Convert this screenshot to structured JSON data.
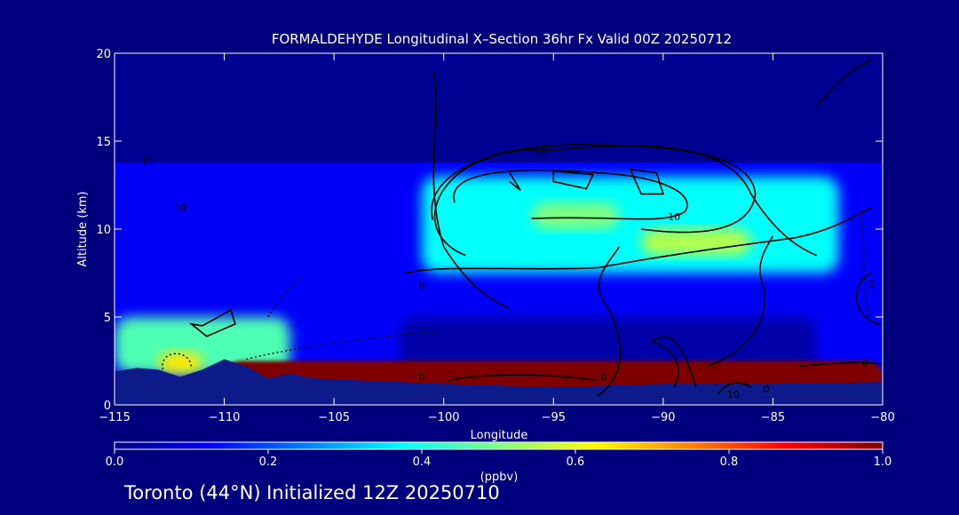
{
  "chart_data": {
    "type": "heatmap",
    "title": "FORMALDEHYDE Longitudinal X–Section 36hr  Fx Valid 00Z 20250712",
    "xlabel": "Longitude",
    "ylabel": "Altitude (km)",
    "xlim": [
      -115,
      -80
    ],
    "ylim": [
      0,
      20
    ],
    "x_ticks": [
      -115,
      -110,
      -105,
      -100,
      -95,
      -90,
      -85,
      -80
    ],
    "x_tick_labels": [
      "−115",
      "−110",
      "−105",
      "−100",
      "−95",
      "−90",
      "−85",
      "−80"
    ],
    "y_ticks": [
      0,
      5,
      10,
      15,
      20
    ],
    "y_tick_labels": [
      "0",
      "5",
      "10",
      "15",
      "20"
    ],
    "colorbar": {
      "label": "(ppbv)",
      "min": 0.0,
      "max": 1.0,
      "ticks": [
        0.0,
        0.2,
        0.4,
        0.6,
        0.8,
        1.0
      ],
      "tick_labels": [
        "0.0",
        "0.2",
        "0.4",
        "0.6",
        "0.8",
        "1.0"
      ]
    },
    "colormap": [
      "#00007f",
      "#0000ff",
      "#0080ff",
      "#00ffff",
      "#80ff80",
      "#ffff00",
      "#ff8000",
      "#ff0000",
      "#7f0000"
    ],
    "field": [
      {
        "lon_range": [
          -115,
          -80
        ],
        "alt_range": [
          0,
          13.8
        ],
        "value": 0.12
      },
      {
        "lon_range": [
          -115,
          -80
        ],
        "alt_range": [
          13.8,
          20
        ],
        "value": 0.02
      },
      {
        "lon_range": [
          -115,
          -107
        ],
        "alt_range": [
          1.8,
          5
        ],
        "value": 0.45
      },
      {
        "lon_range": [
          -113,
          -111
        ],
        "alt_range": [
          1.8,
          3
        ],
        "value": 0.65
      },
      {
        "lon_range": [
          -101,
          -82
        ],
        "alt_range": [
          7.5,
          13
        ],
        "value": 0.38
      },
      {
        "lon_range": [
          -96,
          -92
        ],
        "alt_range": [
          10,
          11.5
        ],
        "value": 0.5
      },
      {
        "lon_range": [
          -91,
          -86
        ],
        "alt_range": [
          8.5,
          10
        ],
        "value": 0.55
      },
      {
        "lon_range": [
          -102,
          -83
        ],
        "alt_range": [
          1.5,
          5
        ],
        "value": 0.04
      },
      {
        "lon_range": [
          -110,
          -80
        ],
        "alt_range": [
          0.3,
          2.5
        ],
        "value": 1.0
      }
    ],
    "contour_labels": [
      "10",
      "10",
      "10",
      "0",
      "0",
      "0",
      "0",
      "10",
      "0",
      "0",
      "10"
    ]
  },
  "footer": {
    "location": "Toronto (44°N) Initialized 12Z 20250710"
  }
}
